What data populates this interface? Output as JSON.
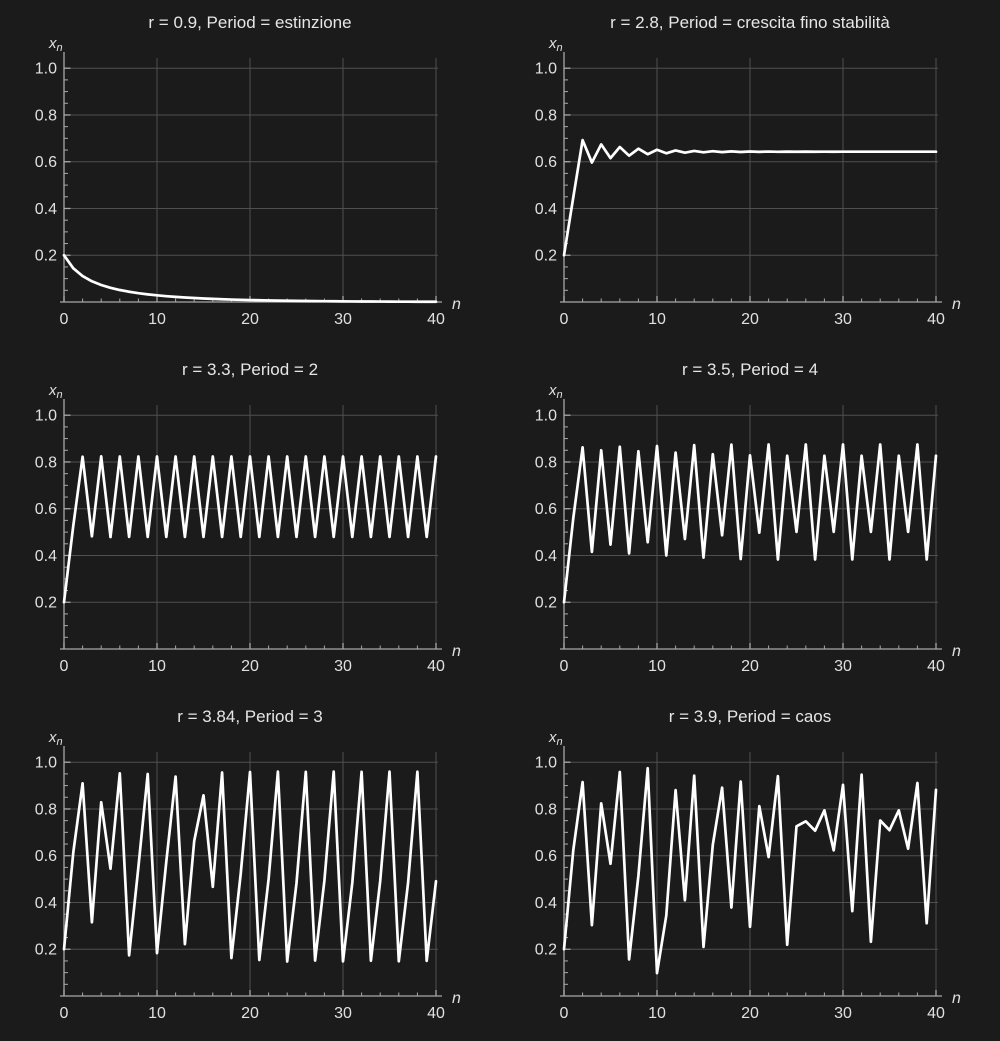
{
  "page": {
    "background": "#1b1b1b",
    "description_title": ""
  },
  "styles": {
    "curve_color": "#ffffff",
    "grid_color": "#4f4f4f",
    "axis_color": "#a8a8a8",
    "tick_label_color": "#e0e0e0",
    "title_color": "#e6e6e6"
  },
  "chart_data": [
    {
      "type": "line",
      "title": "r = 0.9, Period = estinzione",
      "xlabel": "n",
      "ylabel": "x_n",
      "x_start": 0,
      "x_step": 1,
      "xlim": [
        0,
        41
      ],
      "ylim": [
        0,
        1.05
      ],
      "x_ticks": [
        0,
        10,
        20,
        30,
        40
      ],
      "y_ticks": [
        0.2,
        0.4,
        0.6,
        0.8,
        1.0
      ],
      "grid": true,
      "legend": "none",
      "values": [
        0.2,
        0.144,
        0.1109,
        0.0887,
        0.0727,
        0.0607,
        0.0513,
        0.0438,
        0.0377,
        0.0327,
        0.0285,
        0.0249,
        0.0219,
        0.0193,
        0.017,
        0.015,
        0.0133,
        0.0118,
        0.0105,
        0.0094,
        0.0084,
        0.0075,
        0.0067,
        0.006,
        0.0054,
        0.0048,
        0.0043,
        0.0039,
        0.0035,
        0.0031,
        0.0028,
        0.0025,
        0.0022,
        0.002,
        0.0018,
        0.0016,
        0.0014,
        0.0013,
        0.0012,
        0.0011,
        0.001
      ]
    },
    {
      "type": "line",
      "title": "r = 2.8, Period = crescita fino stabilità",
      "xlabel": "n",
      "ylabel": "x_n",
      "x_start": 0,
      "x_step": 1,
      "xlim": [
        0,
        41
      ],
      "ylim": [
        0,
        1.05
      ],
      "x_ticks": [
        0,
        10,
        20,
        30,
        40
      ],
      "y_ticks": [
        0.2,
        0.4,
        0.6,
        0.8,
        1.0
      ],
      "grid": true,
      "legend": "none",
      "values": [
        0.2,
        0.448,
        0.6924,
        0.5964,
        0.674,
        0.6152,
        0.6628,
        0.6258,
        0.6557,
        0.6321,
        0.6511,
        0.6361,
        0.6481,
        0.6386,
        0.6462,
        0.6402,
        0.645,
        0.6411,
        0.6443,
        0.6417,
        0.6438,
        0.6421,
        0.6435,
        0.6423,
        0.6433,
        0.6425,
        0.6431,
        0.6427,
        0.643,
        0.6427,
        0.6429,
        0.6428,
        0.6429,
        0.6428,
        0.6429,
        0.6429,
        0.6429,
        0.6429,
        0.6429,
        0.6429,
        0.6429
      ]
    },
    {
      "type": "line",
      "title": "r = 3.3, Period = 2",
      "xlabel": "n",
      "ylabel": "x_n",
      "x_start": 0,
      "x_step": 1,
      "xlim": [
        0,
        41
      ],
      "ylim": [
        0,
        1.05
      ],
      "x_ticks": [
        0,
        10,
        20,
        30,
        40
      ],
      "y_ticks": [
        0.2,
        0.4,
        0.6,
        0.8,
        1.0
      ],
      "grid": true,
      "legend": "none",
      "values": [
        0.2,
        0.528,
        0.8224,
        0.482,
        0.8239,
        0.4788,
        0.8235,
        0.4796,
        0.8236,
        0.4794,
        0.8236,
        0.4794,
        0.8236,
        0.4794,
        0.8236,
        0.4794,
        0.8236,
        0.4794,
        0.8236,
        0.4794,
        0.8236,
        0.4794,
        0.8236,
        0.4794,
        0.8236,
        0.4794,
        0.8236,
        0.4794,
        0.8236,
        0.4794,
        0.8236,
        0.4794,
        0.8236,
        0.4794,
        0.8236,
        0.4794,
        0.8236,
        0.4794,
        0.8236,
        0.4794,
        0.8236
      ]
    },
    {
      "type": "line",
      "title": "r = 3.5, Period = 4",
      "xlabel": "n",
      "ylabel": "x_n",
      "x_start": 0,
      "x_step": 1,
      "xlim": [
        0,
        41
      ],
      "ylim": [
        0,
        1.05
      ],
      "x_ticks": [
        0,
        10,
        20,
        30,
        40
      ],
      "y_ticks": [
        0.2,
        0.4,
        0.6,
        0.8,
        1.0
      ],
      "grid": true,
      "legend": "none",
      "values": [
        0.2,
        0.56,
        0.8624,
        0.4153,
        0.8499,
        0.4465,
        0.865,
        0.4087,
        0.8458,
        0.4565,
        0.8684,
        0.4,
        0.84,
        0.4704,
        0.8719,
        0.3909,
        0.8333,
        0.4862,
        0.8743,
        0.3846,
        0.8284,
        0.4975,
        0.875,
        0.3828,
        0.8269,
        0.501,
        0.875,
        0.3828,
        0.8269,
        0.5009,
        0.875,
        0.3828,
        0.8269,
        0.5009,
        0.875,
        0.3828,
        0.8269,
        0.5009,
        0.875,
        0.3828,
        0.8269
      ]
    },
    {
      "type": "line",
      "title": "r = 3.84, Period = 3",
      "xlabel": "n",
      "ylabel": "x_n",
      "x_start": 0,
      "x_step": 1,
      "xlim": [
        0,
        41
      ],
      "ylim": [
        0,
        1.05
      ],
      "x_ticks": [
        0,
        10,
        20,
        30,
        40
      ],
      "y_ticks": [
        0.2,
        0.4,
        0.6,
        0.8,
        1.0
      ],
      "grid": true,
      "legend": "none",
      "values": [
        0.2,
        0.6144,
        0.9097,
        0.3153,
        0.829,
        0.5443,
        0.9524,
        0.1739,
        0.5517,
        0.9497,
        0.1833,
        0.5749,
        0.9385,
        0.2218,
        0.6627,
        0.8583,
        0.4669,
        0.9558,
        0.1623,
        0.522,
        0.9581,
        0.154,
        0.5002,
        0.96,
        0.1475,
        0.4827,
        0.9589,
        0.1515,
        0.4936,
        0.9598,
        0.148,
        0.4842,
        0.959,
        0.1508,
        0.4918,
        0.9597,
        0.1484,
        0.4852,
        0.9592,
        0.1504,
        0.4907
      ]
    },
    {
      "type": "line",
      "title": "r = 3.9, Period = caos",
      "xlabel": "n",
      "ylabel": "x_n",
      "x_start": 0,
      "x_step": 1,
      "xlim": [
        0,
        41
      ],
      "ylim": [
        0,
        1.05
      ],
      "x_ticks": [
        0,
        10,
        20,
        30,
        40
      ],
      "y_ticks": [
        0.2,
        0.4,
        0.6,
        0.8,
        1.0
      ],
      "grid": true,
      "legend": "none",
      "values": [
        0.2,
        0.624,
        0.915,
        0.3032,
        0.824,
        0.5657,
        0.9582,
        0.1563,
        0.5142,
        0.9742,
        0.098,
        0.3446,
        0.8808,
        0.4093,
        0.9429,
        0.2098,
        0.6466,
        0.8911,
        0.3784,
        0.9173,
        0.2958,
        0.8124,
        0.5943,
        0.9403,
        0.219,
        0.726,
        0.747,
        0.707,
        0.794,
        0.623,
        0.903,
        0.363,
        0.947,
        0.232,
        0.751,
        0.709,
        0.794,
        0.63,
        0.911,
        0.311,
        0.882
      ]
    }
  ]
}
